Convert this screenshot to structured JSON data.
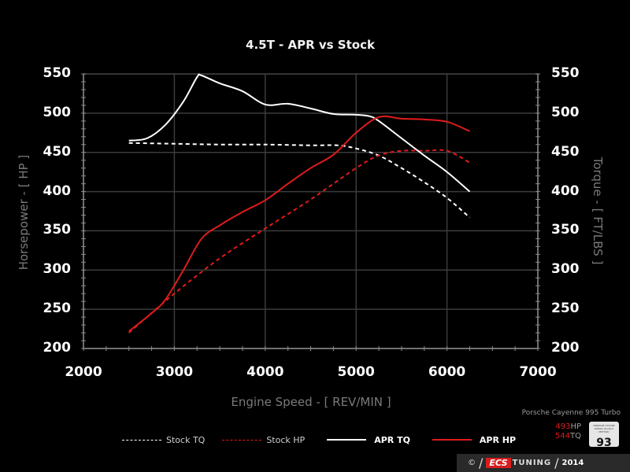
{
  "chart_data": {
    "type": "line",
    "title": "4.5T - APR vs Stock",
    "xlabel": "Engine Speed - [ REV/MIN ]",
    "ylabel": "Horsepower - [ HP ]",
    "y2label": "Torque - [ FT/LBS ]",
    "xlim": [
      2000,
      7000
    ],
    "ylim": [
      200,
      550
    ],
    "y2lim": [
      200,
      550
    ],
    "xticks": [
      "2000",
      "3000",
      "4000",
      "5000",
      "6000",
      "7000"
    ],
    "yticks": [
      "550",
      "500",
      "450",
      "400",
      "350",
      "300",
      "250",
      "200"
    ],
    "grid": true,
    "legend_position": "bottom",
    "series": [
      {
        "name": "Stock TQ",
        "color": "#ffffff",
        "dash": true,
        "axis": "right",
        "x": [
          2500,
          3000,
          3500,
          4000,
          4500,
          4800,
          5000,
          5250,
          5500,
          5750,
          6000,
          6250
        ],
        "y": [
          462,
          461,
          460,
          460,
          459,
          459,
          455,
          446,
          430,
          412,
          392,
          367
        ]
      },
      {
        "name": "Stock HP",
        "color": "#e01b1b",
        "dash": true,
        "axis": "left",
        "x": [
          2500,
          3000,
          3500,
          4000,
          4500,
          5000,
          5250,
          5500,
          5750,
          6000,
          6250
        ],
        "y": [
          220,
          270,
          315,
          353,
          390,
          430,
          446,
          452,
          452,
          452,
          437
        ]
      },
      {
        "name": "APR TQ",
        "color": "#ffffff",
        "dash": false,
        "axis": "right",
        "x": [
          2500,
          2700,
          2900,
          3100,
          3250,
          3300,
          3500,
          3750,
          4000,
          4250,
          4500,
          4750,
          5000,
          5150,
          5250,
          5500,
          5750,
          6000,
          6250
        ],
        "y": [
          465,
          468,
          485,
          515,
          546,
          548,
          538,
          528,
          511,
          512,
          506,
          499,
          498,
          496,
          490,
          468,
          446,
          425,
          400
        ]
      },
      {
        "name": "APR HP",
        "color": "#e01b1b",
        "dash": false,
        "axis": "left",
        "x": [
          2500,
          2750,
          2900,
          3100,
          3300,
          3500,
          3750,
          4000,
          4250,
          4500,
          4750,
          5000,
          5250,
          5500,
          5750,
          6000,
          6250
        ],
        "y": [
          222,
          245,
          262,
          300,
          340,
          357,
          374,
          389,
          410,
          430,
          447,
          475,
          495,
          493,
          492,
          489,
          477
        ]
      }
    ]
  },
  "legend": [
    {
      "label": "Stock TQ",
      "color": "#ffffff",
      "dash": true,
      "bold": false
    },
    {
      "label": "Stock HP",
      "color": "#e01b1b",
      "dash": true,
      "bold": false
    },
    {
      "label": "APR TQ",
      "color": "#ffffff",
      "dash": false,
      "bold": true
    },
    {
      "label": "APR HP",
      "color": "#e01b1b",
      "dash": false,
      "bold": true
    }
  ],
  "vehicle": "Porsche Cayenne 995 Turbo",
  "specs": {
    "hp_value": "493",
    "hp_unit": "HP",
    "tq_value": "544",
    "tq_unit": "TQ"
  },
  "badge": {
    "small_text": "MINIMUM OCTANE RATING (R+M)/2 METHOD",
    "number": "93"
  },
  "footer": {
    "copyright": "©",
    "brand_ecs": "ECS",
    "brand_tuning": "TUNING",
    "year": "2014"
  },
  "colors": {
    "background": "#000000",
    "grid": "#3c3c3c",
    "axis": "#8a8a8a",
    "stock_hp": "#e01b1b",
    "apr_hp": "#e01b1b",
    "tq": "#ffffff"
  }
}
